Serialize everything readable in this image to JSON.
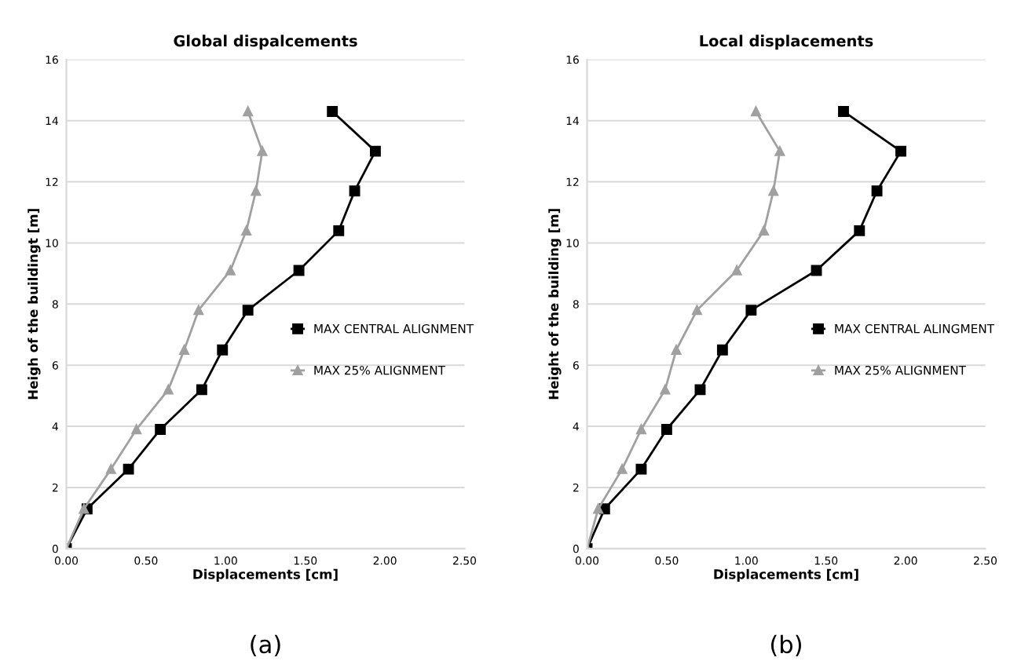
{
  "chart_data": [
    {
      "type": "line",
      "title": "Global dispalcements",
      "xlabel": "Displacements [cm]",
      "ylabel": "Heigh of the buildingt [m]",
      "annotations": [
        "(a)"
      ],
      "grid": "y",
      "legend": "right",
      "xlim": [
        0,
        2.5
      ],
      "xticks": [
        {
          "value": 0,
          "label": "0.00"
        },
        {
          "value": 0.5,
          "label": "0.50"
        },
        {
          "value": 1,
          "label": "1.00"
        },
        {
          "value": 1.5,
          "label": "1.50"
        },
        {
          "value": 2,
          "label": "2.00"
        },
        {
          "value": 2.5,
          "label": "2.50"
        }
      ],
      "ylim": [
        0,
        16
      ],
      "yticks": [
        0,
        2,
        4,
        6,
        8,
        10,
        12,
        14,
        16
      ],
      "series": [
        {
          "name": "MAX CENTRAL ALIGNMENT",
          "color": "#000000",
          "marker": "square",
          "x": [
            0,
            0.13,
            0.39,
            0.59,
            0.85,
            0.98,
            1.14,
            1.46,
            1.71,
            1.81,
            1.94,
            1.67
          ],
          "values": [
            0,
            1.3,
            2.6,
            3.9,
            5.2,
            6.5,
            7.8,
            9.1,
            10.4,
            11.7,
            13,
            14.3
          ]
        },
        {
          "name": "MAX 25% ALIGNMENT",
          "color": "#a0a0a0",
          "marker": "triangle",
          "x": [
            0,
            0.11,
            0.28,
            0.44,
            0.64,
            0.74,
            0.83,
            1.03,
            1.13,
            1.19,
            1.23,
            1.14
          ],
          "values": [
            0,
            1.3,
            2.6,
            3.9,
            5.2,
            6.5,
            7.8,
            9.1,
            10.4,
            11.7,
            13,
            14.3
          ]
        }
      ]
    },
    {
      "type": "line",
      "title": "Local displacements",
      "xlabel": "Displacements [cm]",
      "ylabel": "Height of the building [m]",
      "annotations": [
        "(b)"
      ],
      "grid": "y",
      "legend": "right",
      "xlim": [
        0,
        2.5
      ],
      "xticks": [
        {
          "value": 0,
          "label": "0.00"
        },
        {
          "value": 0.5,
          "label": "0.50"
        },
        {
          "value": 1,
          "label": "1.00"
        },
        {
          "value": 1.5,
          "label": "1.50"
        },
        {
          "value": 2,
          "label": "2.00"
        },
        {
          "value": 2.5,
          "label": "2.50"
        }
      ],
      "ylim": [
        0,
        16
      ],
      "yticks": [
        0,
        2,
        4,
        6,
        8,
        10,
        12,
        14,
        16
      ],
      "series": [
        {
          "name": "MAX CENTRAL ALINGMENT",
          "color": "#000000",
          "marker": "square",
          "x": [
            0,
            0.11,
            0.34,
            0.5,
            0.71,
            0.85,
            1.03,
            1.44,
            1.71,
            1.82,
            1.97,
            1.61
          ],
          "values": [
            0,
            1.3,
            2.6,
            3.9,
            5.2,
            6.5,
            7.8,
            9.1,
            10.4,
            11.7,
            13,
            14.3
          ]
        },
        {
          "name": "MAX 25% ALIGNMENT",
          "color": "#a0a0a0",
          "marker": "triangle",
          "x": [
            0,
            0.07,
            0.22,
            0.34,
            0.49,
            0.56,
            0.69,
            0.94,
            1.11,
            1.17,
            1.21,
            1.06
          ],
          "values": [
            0,
            1.3,
            2.6,
            3.9,
            5.2,
            6.5,
            7.8,
            9.1,
            10.4,
            11.7,
            13,
            14.3
          ]
        }
      ]
    }
  ]
}
